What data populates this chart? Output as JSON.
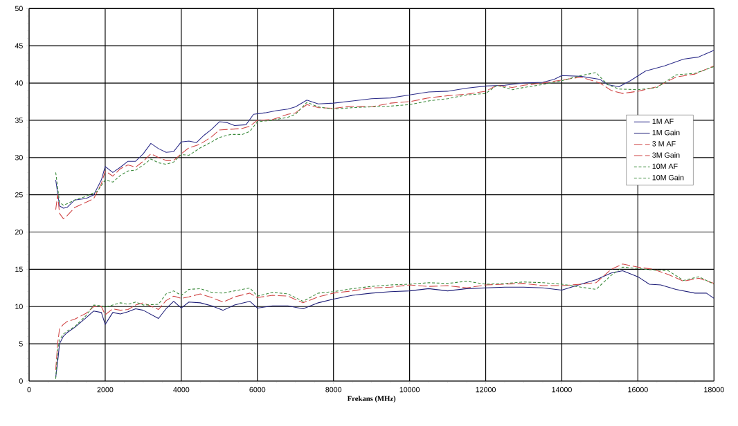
{
  "chart_data": {
    "type": "line",
    "xlabel": "**Frekans** (MHz)",
    "xlim": [
      0,
      18000
    ],
    "ylim": [
      0,
      50
    ],
    "xticks": [
      0,
      2000,
      4000,
      6000,
      8000,
      10000,
      12000,
      14000,
      16000,
      18000
    ],
    "yticks": [
      0,
      5,
      10,
      15,
      20,
      25,
      30,
      35,
      40,
      45,
      50
    ],
    "grid": true,
    "legend": "right",
    "marker": "none",
    "series": [
      {
        "name": "1M AF",
        "color": "#2e2e8a",
        "line_style": "solid",
        "x": [
          700,
          800,
          900,
          1000,
          1200,
          1500,
          1700,
          1900,
          2000,
          2200,
          2400,
          2600,
          2800,
          3000,
          3200,
          3400,
          3600,
          3800,
          4000,
          4200,
          4400,
          4600,
          4800,
          5000,
          5200,
          5400,
          5700,
          5900,
          6200,
          6500,
          6800,
          7000,
          7300,
          7600,
          8000,
          8500,
          9000,
          9500,
          10000,
          10500,
          11000,
          11500,
          12000,
          12500,
          13000,
          13500,
          13800,
          14000,
          14500,
          15000,
          15200,
          15500,
          15800,
          16200,
          16700,
          17200,
          17600,
          18000
        ],
        "values": [
          27,
          23.5,
          23.2,
          23.3,
          24.3,
          24.5,
          25,
          27,
          28.8,
          28,
          28.7,
          29.5,
          29.5,
          30.5,
          31.9,
          31.2,
          30.7,
          30.8,
          32.1,
          32.2,
          32,
          33,
          33.8,
          34.8,
          34.7,
          34.3,
          34.4,
          35.8,
          36,
          36.3,
          36.5,
          36.8,
          37.7,
          37.2,
          37.3,
          37.6,
          37.9,
          38,
          38.4,
          38.8,
          38.9,
          39.3,
          39.6,
          39.7,
          40,
          40.1,
          40.5,
          41,
          40.9,
          40.5,
          39.8,
          39.5,
          40.3,
          41.6,
          42.3,
          43.2,
          43.5,
          44.4
        ]
      },
      {
        "name": "1M Gain",
        "color": "#1e1e78",
        "line_style": "solid",
        "x": [
          700,
          750,
          800,
          900,
          1000,
          1200,
          1500,
          1700,
          1900,
          2000,
          2200,
          2400,
          2600,
          2800,
          3000,
          3400,
          3600,
          3800,
          4000,
          4200,
          4500,
          4800,
          5100,
          5400,
          5800,
          6000,
          6400,
          6800,
          7200,
          7600,
          8000,
          8500,
          9000,
          9500,
          10000,
          10500,
          11000,
          11500,
          12000,
          12500,
          13000,
          13500,
          14000,
          14500,
          14900,
          15300,
          15600,
          16000,
          16300,
          16600,
          17000,
          17500,
          17800,
          18000
        ],
        "values": [
          0.5,
          2.5,
          5,
          6,
          6.5,
          7.2,
          8.5,
          9.4,
          9.2,
          7.6,
          9.2,
          9,
          9.3,
          9.7,
          9.5,
          8.4,
          9.7,
          10.7,
          9.8,
          10.6,
          10.5,
          10.1,
          9.5,
          10.2,
          10.7,
          9.8,
          10.1,
          10.1,
          9.7,
          10.5,
          11,
          11.5,
          11.8,
          12,
          12.1,
          12.4,
          12.1,
          12.4,
          12.5,
          12.6,
          12.6,
          12.5,
          12.2,
          13,
          13.6,
          14.5,
          14.8,
          14,
          13,
          12.9,
          12.3,
          11.8,
          11.8,
          11.1
        ]
      },
      {
        "name": "3 M AF",
        "color": "#d04545",
        "line_style": "dashed",
        "x": [
          700,
          750,
          800,
          900,
          1000,
          1200,
          1500,
          1700,
          1900,
          2000,
          2200,
          2400,
          2600,
          2800,
          3000,
          3200,
          3400,
          3600,
          3800,
          4000,
          4200,
          4500,
          4800,
          5000,
          5300,
          5600,
          5800,
          6000,
          6400,
          6800,
          7000,
          7300,
          7600,
          8000,
          8500,
          9000,
          9500,
          10000,
          10500,
          11000,
          11500,
          12000,
          12300,
          12700,
          13000,
          13500,
          14000,
          14500,
          15000,
          15300,
          15600,
          16000,
          16500,
          17000,
          17500,
          18000
        ],
        "values": [
          23,
          25,
          22.5,
          21.8,
          22.2,
          23.3,
          24,
          24.5,
          26.5,
          28.2,
          27.5,
          28.5,
          29,
          28.7,
          29.5,
          30.5,
          30,
          29.6,
          29.6,
          30.5,
          31.3,
          31.8,
          32.8,
          33.7,
          33.8,
          33.9,
          34.2,
          35,
          35.1,
          35.8,
          36,
          37.1,
          36.7,
          36.6,
          36.9,
          36.8,
          37.3,
          37.5,
          38,
          38.3,
          38.5,
          38.9,
          39.7,
          39.4,
          39.7,
          40,
          40.4,
          40.8,
          40,
          39,
          38.6,
          38.9,
          39.5,
          40.8,
          41.2,
          42.3
        ]
      },
      {
        "name": "3M Gain",
        "color": "#d04545",
        "line_style": "dashed",
        "x": [
          700,
          750,
          800,
          900,
          1000,
          1200,
          1500,
          1700,
          1900,
          2000,
          2200,
          2400,
          2600,
          2800,
          3000,
          3400,
          3600,
          3800,
          4000,
          4200,
          4500,
          4800,
          5100,
          5400,
          5800,
          6000,
          6400,
          6800,
          7200,
          7600,
          8000,
          8500,
          9000,
          9500,
          10000,
          10500,
          11000,
          11500,
          12000,
          12500,
          13000,
          13500,
          14000,
          14500,
          14900,
          15300,
          15600,
          16000,
          16400,
          16800,
          17200,
          17600,
          18000
        ],
        "values": [
          1.5,
          5,
          7,
          7.6,
          8,
          8.3,
          9.1,
          10,
          10,
          8.9,
          9.7,
          9.5,
          9.6,
          10.2,
          10.5,
          9.6,
          10.8,
          11.4,
          11.1,
          11.3,
          11.7,
          11.2,
          10.6,
          11.3,
          11.8,
          11.2,
          11.5,
          11.4,
          10.5,
          11.3,
          11.8,
          12.1,
          12.5,
          12.6,
          12.9,
          12.7,
          12.8,
          12.5,
          12.9,
          13,
          13.1,
          12.8,
          12.8,
          13,
          13.2,
          15,
          15.7,
          15.3,
          15,
          14.3,
          13.4,
          13.8,
          13.1
        ]
      },
      {
        "name": "10M AF",
        "color": "#3a8a3a",
        "line_style": "dotted",
        "x": [
          700,
          800,
          900,
          1000,
          1200,
          1500,
          1800,
          2000,
          2200,
          2400,
          2600,
          2800,
          3000,
          3200,
          3400,
          3600,
          3800,
          4000,
          4200,
          4500,
          4800,
          5000,
          5300,
          5600,
          5800,
          6000,
          6400,
          6800,
          7000,
          7300,
          7600,
          8000,
          8500,
          9000,
          9500,
          10000,
          10500,
          11000,
          11500,
          12000,
          12300,
          12700,
          13000,
          13500,
          14000,
          14500,
          14900,
          15200,
          15500,
          16000,
          16500,
          17000,
          17500,
          18000
        ],
        "values": [
          28,
          24,
          23.6,
          23.8,
          24.3,
          24.8,
          25.5,
          27,
          26.7,
          27.6,
          28.2,
          28.3,
          29,
          29.8,
          29.3,
          29.1,
          29.4,
          30.4,
          30.3,
          31.3,
          32.1,
          32.7,
          33.1,
          33.1,
          33.5,
          34.8,
          35,
          35.4,
          35.8,
          37.4,
          36.8,
          36.5,
          36.7,
          36.8,
          36.9,
          37.1,
          37.6,
          37.9,
          38.4,
          38.6,
          39.7,
          39.1,
          39.4,
          39.8,
          40.3,
          41,
          41.4,
          39.8,
          39.2,
          39.1,
          39.4,
          41.1,
          41.3,
          42.2
        ]
      },
      {
        "name": "10M Gain",
        "color": "#3a8a3a",
        "line_style": "dotted",
        "x": [
          700,
          750,
          800,
          900,
          1000,
          1200,
          1500,
          1700,
          1900,
          2000,
          2200,
          2400,
          2600,
          2800,
          3000,
          3400,
          3600,
          3800,
          4000,
          4200,
          4500,
          4800,
          5100,
          5400,
          5800,
          6000,
          6400,
          6800,
          7200,
          7600,
          8000,
          8500,
          9000,
          9500,
          10000,
          10500,
          11000,
          11500,
          12000,
          12500,
          13000,
          13500,
          14000,
          14500,
          14900,
          15300,
          15600,
          16000,
          16400,
          16800,
          17200,
          17600,
          18000
        ],
        "values": [
          0.3,
          4,
          5.5,
          6.3,
          6.7,
          7.3,
          8.8,
          10.2,
          10.1,
          9.9,
          10.2,
          10.5,
          10.3,
          10.6,
          10.2,
          10.3,
          11.7,
          12.1,
          11.5,
          12.3,
          12.4,
          11.9,
          11.8,
          12.1,
          12.5,
          11.4,
          11.9,
          11.7,
          10.7,
          11.8,
          12,
          12.4,
          12.7,
          12.9,
          13,
          13.2,
          13.1,
          13.4,
          13,
          13.1,
          13.3,
          13.2,
          13,
          12.6,
          12.3,
          14.2,
          15.3,
          15.1,
          14.9,
          14.8,
          13.5,
          14,
          13
        ]
      }
    ]
  }
}
